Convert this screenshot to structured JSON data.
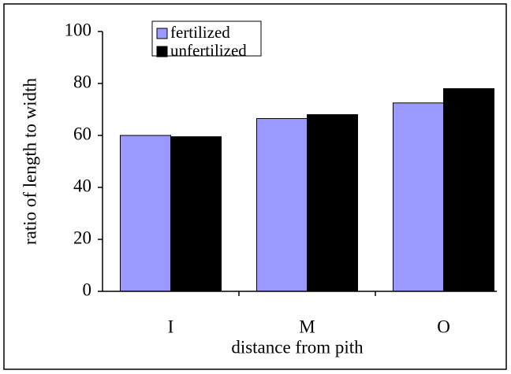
{
  "chart_data": {
    "type": "bar",
    "xlabel": "distance from pith",
    "ylabel": "ratio of length to width",
    "categories": [
      "I",
      "M",
      "O"
    ],
    "series": [
      {
        "name": "fertilized",
        "color": "#9999ff",
        "values": [
          60,
          66.5,
          72.5
        ]
      },
      {
        "name": "unfertilized",
        "color": "#000000",
        "values": [
          59.5,
          68,
          78
        ]
      }
    ],
    "ylim": [
      0,
      100
    ],
    "yticks": [
      0,
      20,
      40,
      60,
      80,
      100
    ],
    "legend": "top-left"
  }
}
